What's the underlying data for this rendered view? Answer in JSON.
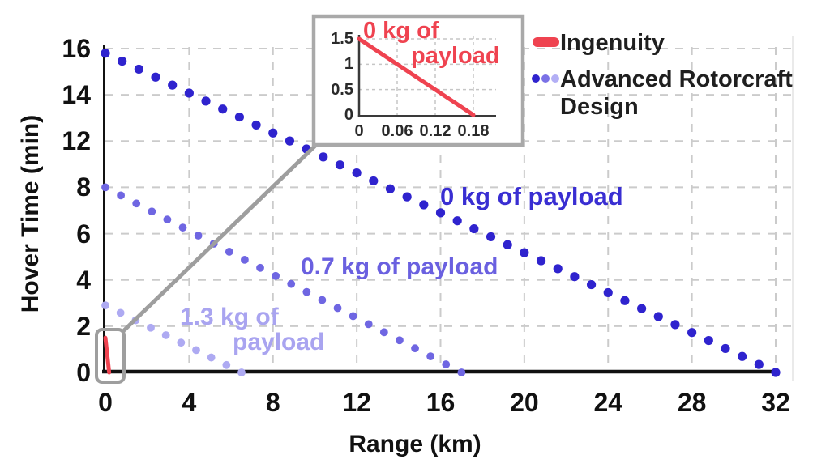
{
  "chart_data": {
    "type": "line",
    "xlabel": "Range (km)",
    "ylabel": "Hover Time (min)",
    "x_ticks": [
      "0",
      "4",
      "8",
      "12",
      "16",
      "20",
      "24",
      "28",
      "32"
    ],
    "y_ticks": [
      "0",
      "2",
      "4",
      "6",
      "8",
      "12",
      "14",
      "16"
    ],
    "xlim": [
      0,
      32
    ],
    "grid": true,
    "series": [
      {
        "name": "Ingenuity",
        "payload_kg": 0,
        "style": "solid",
        "color": "#ef4350",
        "points": [
          [
            0,
            1.5
          ],
          [
            0.18,
            0
          ]
        ]
      },
      {
        "name": "Advanced Rotorcraft Design",
        "payload_kg": 0,
        "style": "dotted",
        "color": "#2f23ce",
        "points": [
          [
            0,
            15.8
          ],
          [
            32,
            0
          ]
        ],
        "dot_count": 41
      },
      {
        "name": "Advanced Rotorcraft Design",
        "payload_kg": 0.7,
        "style": "dotted",
        "color": "#6f66e2",
        "points": [
          [
            0,
            8
          ],
          [
            17,
            0
          ]
        ],
        "dot_count": 24
      },
      {
        "name": "Advanced Rotorcraft Design",
        "payload_kg": 1.3,
        "style": "dotted",
        "color": "#aeaaf2",
        "points": [
          [
            0,
            2.9
          ],
          [
            6.5,
            0
          ]
        ],
        "dot_count": 10
      }
    ],
    "annotations": [
      {
        "lines": [
          "0 kg of payload"
        ],
        "color": "#392ed2"
      },
      {
        "lines": [
          "0.7 kg of payload"
        ],
        "color": "#6a60e0"
      },
      {
        "lines": [
          "1.3 kg of",
          "payload"
        ],
        "color": "#a9a4f0"
      }
    ],
    "inset": {
      "title_lines": [
        "0 kg of",
        "payload"
      ],
      "title_color": "#ef4350",
      "x_ticks": [
        "0",
        "0.06",
        "0.12",
        "0.18"
      ],
      "y_ticks": [
        "0",
        "0.5",
        "1",
        "1.5"
      ],
      "xlim": [
        0,
        0.18
      ],
      "ylim": [
        0,
        1.5
      ],
      "series": {
        "name": "Ingenuity",
        "color": "#ef4350",
        "points": [
          [
            0,
            1.5
          ],
          [
            0.18,
            0
          ]
        ]
      }
    }
  },
  "legend": {
    "items": [
      {
        "label": "Ingenuity",
        "marker": "line",
        "color": "#ef4350"
      },
      {
        "label": "Advanced Rotorcraft Design",
        "marker": "dots",
        "dot_colors": [
          "#2f23ce",
          "#7a71e6",
          "#b3aff5"
        ]
      }
    ]
  }
}
